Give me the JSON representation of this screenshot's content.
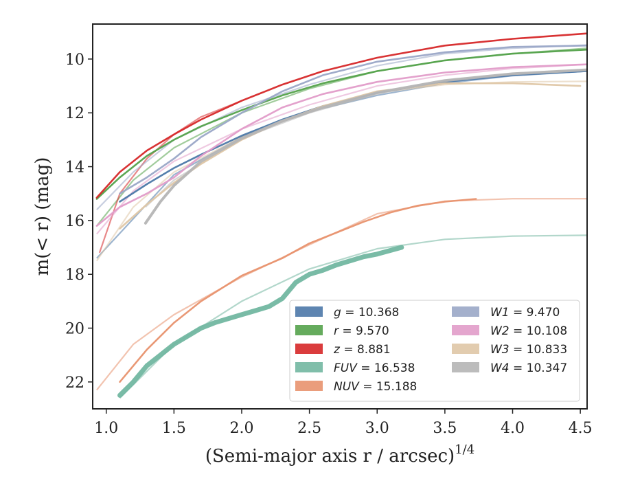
{
  "chart_data": {
    "type": "line",
    "title": "",
    "xlabel": "(Semi-major axis r / arcsec)",
    "xlabel_exp": "1/4",
    "ylabel": "m(< r) (mag)",
    "xlim": [
      0.9,
      4.55
    ],
    "ylim": [
      23.0,
      8.7
    ],
    "y_inverted": true,
    "grid": false,
    "legend_position": "lower-right",
    "x_ticks": [
      "1.0",
      "1.5",
      "2.0",
      "2.5",
      "3.0",
      "3.5",
      "4.0",
      "4.5"
    ],
    "y_ticks": [
      "10",
      "12",
      "14",
      "16",
      "18",
      "20",
      "22"
    ],
    "series": [
      {
        "name": "g = 10.368",
        "band": "g",
        "mag": "10.368",
        "color": "#4c78a8",
        "data_x": [
          1.1,
          1.3,
          1.5,
          1.7,
          2.0,
          2.3,
          2.6,
          3.0,
          3.5,
          4.0,
          4.55
        ],
        "data_y": [
          15.3,
          14.65,
          14.05,
          13.55,
          12.85,
          12.25,
          11.75,
          11.25,
          10.85,
          10.6,
          10.45
        ],
        "model_x": [
          0.93,
          1.5,
          2.0,
          2.5,
          3.0,
          3.5,
          4.0,
          4.55
        ],
        "model_y": [
          17.4,
          14.3,
          12.9,
          11.95,
          11.35,
          10.9,
          10.62,
          10.45
        ]
      },
      {
        "name": "r = 9.570",
        "band": "r",
        "mag": "9.570",
        "color": "#54a24b",
        "data_x": [
          0.93,
          1.1,
          1.3,
          1.5,
          1.7,
          2.0,
          2.3,
          2.6,
          3.0,
          3.5,
          4.0,
          4.55
        ],
        "data_y": [
          15.2,
          14.4,
          13.6,
          13.0,
          12.5,
          11.9,
          11.35,
          10.9,
          10.45,
          10.05,
          9.8,
          9.65
        ],
        "model_x": [
          0.93,
          1.2,
          1.5,
          2.0,
          2.5,
          3.0,
          3.5,
          4.0,
          4.55
        ],
        "model_y": [
          16.2,
          14.5,
          13.3,
          12.0,
          11.1,
          10.45,
          10.05,
          9.8,
          9.6
        ]
      },
      {
        "name": "z = 8.881",
        "band": "z",
        "mag": "8.881",
        "color": "#d62728",
        "data_x": [
          0.93,
          1.1,
          1.3,
          1.5,
          1.7,
          2.0,
          2.3,
          2.6,
          3.0,
          3.5,
          4.0,
          4.55
        ],
        "data_y": [
          15.15,
          14.2,
          13.4,
          12.8,
          12.25,
          11.55,
          10.95,
          10.45,
          9.95,
          9.5,
          9.25,
          9.05
        ],
        "model_x": [
          0.95,
          1.1,
          1.3,
          1.5,
          1.7,
          2.0
        ],
        "model_y": [
          17.2,
          15.0,
          13.7,
          12.8,
          12.15,
          11.55
        ]
      },
      {
        "name": "FUV = 16.538",
        "band": "FUV",
        "mag": "16.538",
        "color": "#72b7a1",
        "data_x": [
          1.1,
          1.2,
          1.3,
          1.4,
          1.5,
          1.6,
          1.7,
          1.8,
          2.0,
          2.1,
          2.2,
          2.3,
          2.4,
          2.5,
          2.6,
          2.7,
          2.8,
          2.9,
          3.0,
          3.18
        ],
        "data_y": [
          22.5,
          22.0,
          21.4,
          21.0,
          20.6,
          20.3,
          20.0,
          19.8,
          19.5,
          19.35,
          19.2,
          18.9,
          18.3,
          18.0,
          17.85,
          17.65,
          17.5,
          17.35,
          17.25,
          17.0
        ],
        "model_x": [
          1.1,
          1.5,
          2.0,
          2.5,
          3.0,
          3.5,
          4.0,
          4.55
        ],
        "model_y": [
          22.6,
          20.6,
          19.0,
          17.8,
          17.05,
          16.7,
          16.58,
          16.55
        ]
      },
      {
        "name": "NUV = 15.188",
        "band": "NUV",
        "mag": "15.188",
        "color": "#e8926e",
        "data_x": [
          1.1,
          1.3,
          1.5,
          1.7,
          2.0,
          2.3,
          2.5,
          2.7,
          2.9,
          3.1,
          3.3,
          3.5,
          3.73
        ],
        "data_y": [
          22.0,
          20.8,
          19.8,
          19.0,
          18.05,
          17.4,
          16.85,
          16.45,
          16.05,
          15.7,
          15.45,
          15.3,
          15.2
        ],
        "model_x": [
          0.93,
          1.2,
          1.5,
          2.0,
          2.5,
          3.0,
          3.5,
          4.0,
          4.55
        ],
        "model_y": [
          22.3,
          20.6,
          19.5,
          18.1,
          16.9,
          15.75,
          15.28,
          15.19,
          15.19
        ]
      },
      {
        "name": "W1 = 9.470",
        "band": "W1",
        "mag": "9.470",
        "color": "#9aa7c7",
        "data_x": [
          1.1,
          1.3,
          1.5,
          1.7,
          2.0,
          2.3,
          2.6,
          3.0,
          3.5,
          4.0,
          4.55
        ],
        "data_y": [
          15.0,
          14.4,
          13.7,
          12.9,
          12.0,
          11.2,
          10.6,
          10.1,
          9.75,
          9.55,
          9.5
        ],
        "model_x": [
          0.93,
          1.2,
          1.5,
          2.0,
          2.5,
          3.0,
          3.5,
          4.0,
          4.55
        ],
        "model_y": [
          15.6,
          14.2,
          13.0,
          11.8,
          10.95,
          10.25,
          9.8,
          9.6,
          9.48
        ]
      },
      {
        "name": "W2 = 10.108",
        "band": "W2",
        "mag": "10.108",
        "color": "#e19cc9",
        "data_x": [
          0.93,
          1.1,
          1.3,
          1.5,
          1.7,
          2.0,
          2.3,
          2.6,
          3.0,
          3.5,
          4.0,
          4.55
        ],
        "data_y": [
          16.2,
          15.5,
          15.0,
          14.4,
          13.6,
          12.6,
          11.8,
          11.3,
          10.85,
          10.5,
          10.3,
          10.2
        ],
        "model_x": [
          0.93,
          1.2,
          1.5,
          2.0,
          2.5,
          3.0,
          3.5,
          4.0,
          4.55
        ],
        "model_y": [
          16.5,
          14.9,
          13.8,
          12.6,
          11.7,
          11.0,
          10.6,
          10.35,
          10.2
        ]
      },
      {
        "name": "W3 = 10.833",
        "band": "W3",
        "mag": "10.833",
        "color": "#dfc7a6",
        "data_x": [
          1.1,
          1.3,
          1.5,
          1.7,
          2.0,
          2.3,
          2.6,
          3.0,
          3.5,
          4.0,
          4.5
        ],
        "data_y": [
          16.3,
          15.4,
          14.6,
          13.9,
          13.0,
          12.3,
          11.75,
          11.2,
          10.9,
          10.9,
          11.0
        ],
        "model_x": [
          0.93,
          1.2,
          1.5,
          2.0,
          2.5,
          3.0,
          3.5,
          4.0,
          4.55
        ],
        "model_y": [
          17.5,
          15.5,
          14.2,
          12.9,
          11.95,
          11.25,
          10.95,
          10.85,
          10.83
        ]
      },
      {
        "name": "W4 = 10.347",
        "band": "W4",
        "mag": "10.347",
        "color": "#b5b5b5",
        "data_x": [
          1.29,
          1.4,
          1.5,
          1.7,
          2.0,
          2.3,
          2.6,
          3.0,
          3.5,
          4.0,
          4.55
        ],
        "data_y": [
          16.1,
          15.3,
          14.7,
          13.8,
          12.95,
          12.3,
          11.8,
          11.25,
          10.8,
          10.55,
          10.4
        ],
        "model_x": [
          1.29,
          1.5,
          2.0,
          2.5,
          3.0,
          3.5,
          4.0,
          4.55
        ],
        "model_y": [
          15.5,
          14.5,
          12.95,
          12.0,
          11.3,
          10.8,
          10.55,
          10.4
        ]
      }
    ]
  }
}
